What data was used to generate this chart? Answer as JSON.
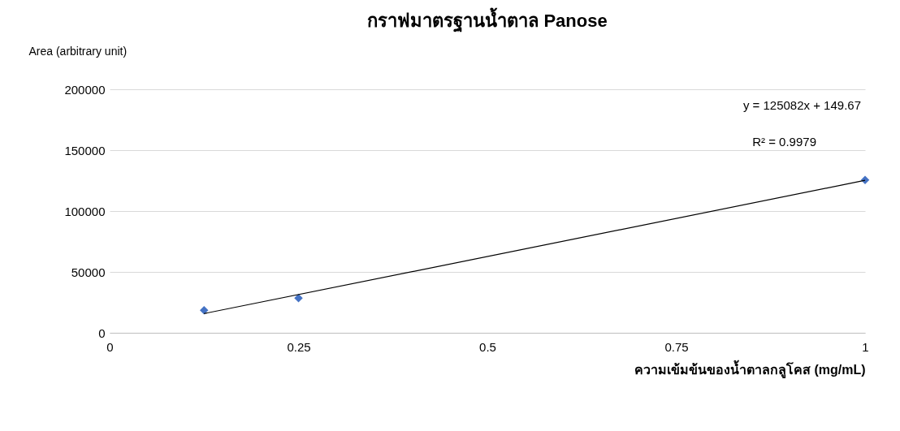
{
  "chart_data": {
    "type": "scatter",
    "title": "กราฟมาตรฐานน้ำตาล Panose",
    "xlabel": "ความเข้มข้นของน้ำตาลกลูโคส (mg/mL)",
    "ylabel": "Area (arbitrary unit)",
    "xlim": [
      0,
      1
    ],
    "xticks": [
      0,
      0.25,
      0.5,
      0.75,
      1
    ],
    "ylim": [
      0,
      200000
    ],
    "yticks": [
      0,
      50000,
      100000,
      150000,
      200000
    ],
    "series": [
      {
        "color": "#4472c4",
        "x": [
          0.125,
          0.25,
          1
        ],
        "values": [
          18500,
          28500,
          125500
        ]
      },
      {
        "type": "line",
        "color": "#000000",
        "x": [
          0.125,
          1
        ],
        "values": [
          15800,
          125200
        ],
        "marker": "none"
      }
    ],
    "annotations": [
      "y = 125082x + 149.67",
      "R² = 0.9979"
    ],
    "marker": "diamond",
    "grid": "y"
  }
}
